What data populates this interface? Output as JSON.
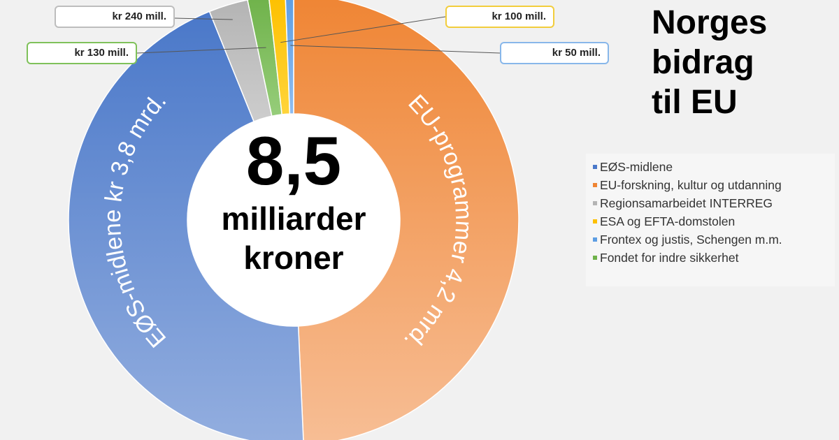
{
  "chart_data": {
    "type": "pie",
    "style": "donut",
    "title": "Norges bidrag til EU",
    "title_lines": [
      "Norges",
      "bidrag",
      "til EU"
    ],
    "unit": "mill. kr",
    "center_label": {
      "value": "8,5",
      "line1": "milliarder",
      "line2": "kroner"
    },
    "slices": [
      {
        "name": "EU-forskning, kultur og utdanning",
        "value": 4200,
        "color": "#ef8534",
        "color_light": "#f7be95",
        "label": "EU-programmer 4,2 mrd."
      },
      {
        "name": "EØS-midlene",
        "value": 3800,
        "color": "#4a78c9",
        "color_light": "#93aedf",
        "label": "EØS-midlene kr 3,8 mrd."
      },
      {
        "name": "Regionsamarbeidet INTERREG",
        "value": 240,
        "color": "#b4b4b4",
        "color_light": "#cdcdcd",
        "label": "kr 240 mill."
      },
      {
        "name": "Fondet for indre sikkerhet",
        "value": 130,
        "color": "#6fb24a",
        "color_light": "#96cd7a",
        "label": "kr 130 mill."
      },
      {
        "name": "ESA og EFTA-domstolen",
        "value": 100,
        "color": "#fdc000",
        "color_light": "#ffd43a",
        "label": "kr 100 mill."
      },
      {
        "name": "Frontex og justis, Schengen m.m.",
        "value": 50,
        "color": "#5d9ee3",
        "color_light": "#8fbdf0",
        "label": "kr 50 mill."
      }
    ],
    "legend": [
      {
        "name": "EØS-midlene",
        "color": "#4a78c9"
      },
      {
        "name": "EU-forskning, kultur og utdanning",
        "color": "#ef8534"
      },
      {
        "name": "Regionsamarbeidet INTERREG",
        "color": "#b4b4b4"
      },
      {
        "name": "ESA og EFTA-domstolen",
        "color": "#fdc000"
      },
      {
        "name": "Frontex og justis, Schengen m.m.",
        "color": "#5d9ee3"
      },
      {
        "name": "Fondet for indre sikkerhet",
        "color": "#6fb24a"
      }
    ],
    "legend_position": "right"
  }
}
